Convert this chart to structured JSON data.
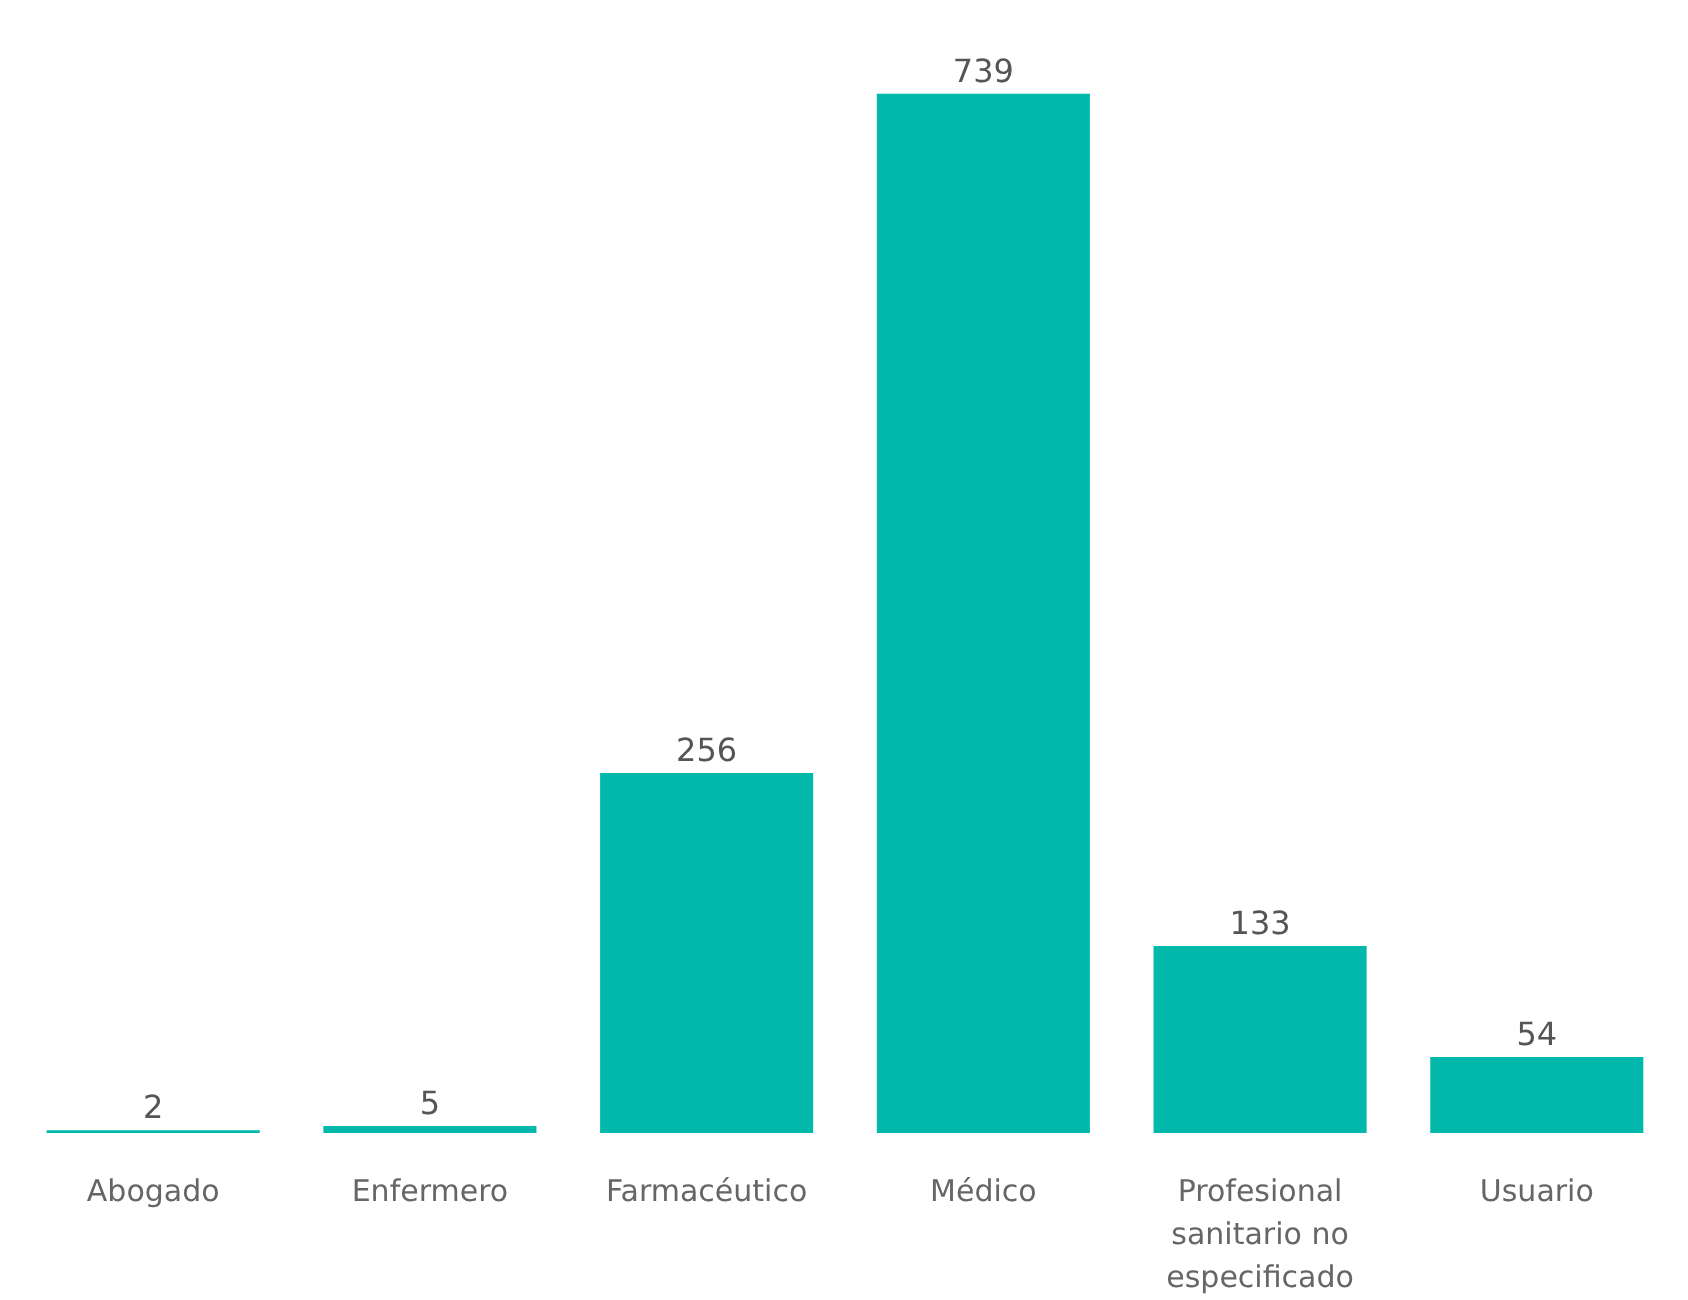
{
  "chart_data": {
    "type": "bar",
    "categories": [
      "Abogado",
      "Enfermero",
      "Farmacéutico",
      "Médico",
      "Profesional sanitario no especificado",
      "Usuario"
    ],
    "values": [
      2,
      5,
      256,
      739,
      133,
      54
    ],
    "color": "#01b8aa",
    "data_labels": true,
    "grid": false
  }
}
